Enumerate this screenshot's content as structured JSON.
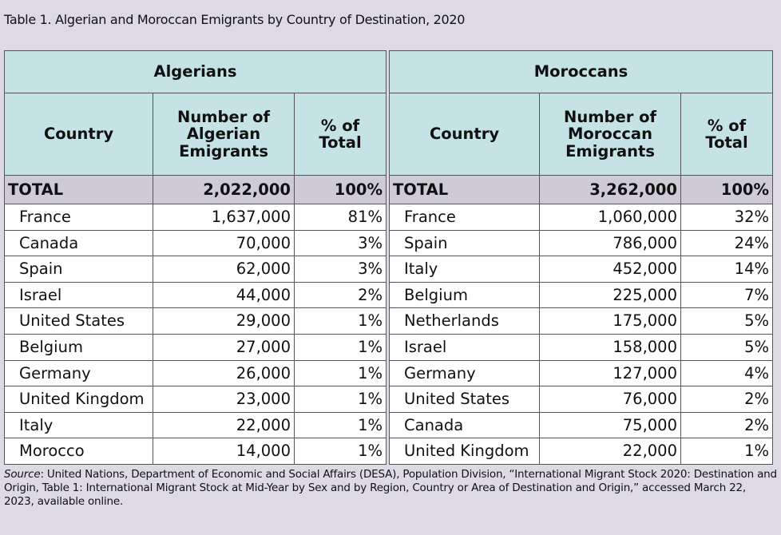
{
  "title": "Table 1. Algerian and Moroccan Emigrants by Country of Destination, 2020",
  "tables": [
    {
      "group": "Algerians",
      "headers": [
        "Country",
        "Number of Algerian Emigrants",
        "% of Total"
      ],
      "total": [
        "TOTAL",
        "2,022,000",
        "100%"
      ],
      "rows": [
        [
          "France",
          "1,637,000",
          "81%"
        ],
        [
          "Canada",
          "70,000",
          "3%"
        ],
        [
          "Spain",
          "62,000",
          "3%"
        ],
        [
          "Israel",
          "44,000",
          "2%"
        ],
        [
          "United States",
          "29,000",
          "1%"
        ],
        [
          "Belgium",
          "27,000",
          "1%"
        ],
        [
          "Germany",
          "26,000",
          "1%"
        ],
        [
          "United Kingdom",
          "23,000",
          "1%"
        ],
        [
          "Italy",
          "22,000",
          "1%"
        ],
        [
          "Morocco",
          "14,000",
          "1%"
        ]
      ]
    },
    {
      "group": "Moroccans",
      "headers": [
        "Country",
        "Number of Moroccan Emigrants",
        "% of Total"
      ],
      "total": [
        "TOTAL",
        "3,262,000",
        "100%"
      ],
      "rows": [
        [
          "France",
          "1,060,000",
          "32%"
        ],
        [
          "Spain",
          "786,000",
          "24%"
        ],
        [
          "Italy",
          "452,000",
          "14%"
        ],
        [
          "Belgium",
          "225,000",
          "7%"
        ],
        [
          "Netherlands",
          "175,000",
          "5%"
        ],
        [
          "Israel",
          "158,000",
          "5%"
        ],
        [
          "Germany",
          "127,000",
          "4%"
        ],
        [
          "United States",
          "76,000",
          "2%"
        ],
        [
          "Canada",
          "75,000",
          "2%"
        ],
        [
          "United Kingdom",
          "22,000",
          "1%"
        ]
      ]
    }
  ],
  "source": {
    "label": "Source",
    "text": ": United Nations, Department of Economic and Social Affairs (DESA), Population Division, “International Migrant Stock 2020: Destination and Origin, Table 1: International Migrant Stock at Mid-Year by Sex and by Region, Country or Area of Destination and Origin,” accessed March 22, 2023, available online."
  }
}
